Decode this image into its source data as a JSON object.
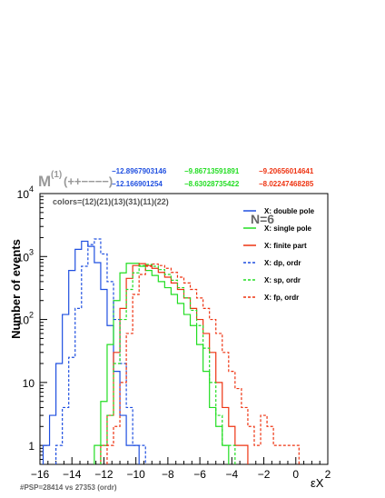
{
  "chart_data": {
    "type": "histogram",
    "title": "",
    "xlabel": "εX",
    "ylabel": "Number of events",
    "y_scale": "log",
    "xlim": [
      -16,
      2
    ],
    "ylim": [
      0.5,
      10000
    ],
    "grid": false,
    "legend_placement": "top-right",
    "x_ticks": [
      "−16",
      "−14",
      "−12",
      "−10",
      "−8",
      "−6",
      "−4",
      "−2",
      "0",
      "2"
    ],
    "y_ticks": [
      {
        "value": 1,
        "base": "1",
        "exp": ""
      },
      {
        "value": 10,
        "base": "10",
        "exp": ""
      },
      {
        "value": 100,
        "base": "10",
        "exp": "2"
      },
      {
        "value": 1000,
        "base": "10",
        "exp": "3"
      },
      {
        "value": 10000,
        "base": "10",
        "exp": "4"
      }
    ],
    "series": [
      {
        "name": "X: double pole",
        "color": "#1f4fe0",
        "dash": false,
        "x": [
          -15.6,
          -15.2,
          -14.8,
          -14.4,
          -14.0,
          -13.6,
          -13.2,
          -12.8,
          -12.4,
          -12.0,
          -11.6,
          -11.2,
          -10.8,
          -10.4,
          -10.0
        ],
        "y": [
          1,
          3,
          20,
          120,
          600,
          1300,
          1750,
          1450,
          800,
          300,
          80,
          15,
          3,
          1,
          1
        ]
      },
      {
        "name": "X: single pole",
        "color": "#22dd22",
        "dash": false,
        "x": [
          -12.4,
          -12.0,
          -11.6,
          -11.2,
          -10.8,
          -10.4,
          -10.0,
          -9.6,
          -9.2,
          -8.8,
          -8.4,
          -8.0,
          -7.6,
          -7.2,
          -6.8,
          -6.4,
          -6.0,
          -5.6,
          -5.2,
          -4.8,
          -4.4
        ],
        "y": [
          1,
          5,
          40,
          200,
          550,
          780,
          780,
          700,
          600,
          500,
          400,
          320,
          250,
          180,
          120,
          80,
          40,
          15,
          4,
          2,
          1
        ]
      },
      {
        "name": "X: finite part",
        "color": "#ee3311",
        "dash": false,
        "x": [
          -12.0,
          -11.6,
          -11.2,
          -10.8,
          -10.4,
          -10.0,
          -9.6,
          -9.2,
          -8.8,
          -8.4,
          -8.0,
          -7.6,
          -7.2,
          -6.8,
          -6.4,
          -6.0,
          -5.6,
          -5.2,
          -4.8,
          -4.4,
          -4.0,
          -3.6,
          -3.2
        ],
        "y": [
          1,
          3,
          30,
          150,
          450,
          720,
          770,
          720,
          650,
          560,
          470,
          380,
          300,
          220,
          150,
          100,
          60,
          30,
          10,
          4,
          2,
          1,
          1
        ]
      },
      {
        "name": "X: dp, ordr",
        "color": "#1f4fe0",
        "dash": true,
        "x": [
          -14.8,
          -14.4,
          -14.0,
          -13.6,
          -13.2,
          -12.8,
          -12.4,
          -12.0,
          -11.6,
          -11.2,
          -10.8,
          -10.4,
          -10.0,
          -9.6
        ],
        "y": [
          1,
          4,
          25,
          150,
          700,
          1550,
          1900,
          1100,
          400,
          100,
          20,
          4,
          1,
          1
        ]
      },
      {
        "name": "X: sp, ordr",
        "color": "#22dd22",
        "dash": true,
        "x": [
          -12.0,
          -11.6,
          -11.2,
          -10.8,
          -10.4,
          -10.0,
          -9.6,
          -9.2,
          -8.8,
          -8.4,
          -8.0,
          -7.6,
          -7.2,
          -6.8,
          -6.4,
          -6.0,
          -5.6,
          -5.2,
          -4.8,
          -4.4,
          -4.0
        ],
        "y": [
          1,
          3,
          20,
          100,
          300,
          550,
          720,
          750,
          700,
          620,
          520,
          420,
          320,
          220,
          140,
          80,
          35,
          10,
          3,
          1,
          1
        ]
      },
      {
        "name": "X: fp, ordr",
        "color": "#ee3311",
        "dash": true,
        "x": [
          -11.6,
          -11.2,
          -10.8,
          -10.4,
          -10.0,
          -9.6,
          -9.2,
          -8.8,
          -8.4,
          -8.0,
          -7.6,
          -7.2,
          -6.8,
          -6.4,
          -6.0,
          -5.6,
          -5.2,
          -4.8,
          -4.4,
          -4.0,
          -3.6,
          -3.2,
          -2.8,
          -2.4,
          -2.0,
          -1.6,
          -1.2,
          -0.8,
          -0.4,
          0.0
        ],
        "y": [
          1,
          2,
          10,
          60,
          250,
          520,
          700,
          760,
          720,
          650,
          560,
          470,
          380,
          300,
          220,
          150,
          100,
          60,
          30,
          15,
          8,
          4,
          2,
          1,
          3,
          2,
          1,
          1,
          1,
          1
        ]
      }
    ],
    "annotations": {
      "header_label": "M",
      "header_sup": "(1)",
      "header_args": "(++−−−−)",
      "values_row1": [
        {
          "text": "−12.8967903146",
          "color": "#1f4fe0"
        },
        {
          "text": "−9.86713591891",
          "color": "#22dd22"
        },
        {
          "text": "−9.20656014641",
          "color": "#ee3311"
        }
      ],
      "values_row2": [
        {
          "text": "−12.166901254",
          "color": "#1f4fe0"
        },
        {
          "text": "−8.63028735422",
          "color": "#22dd22"
        },
        {
          "text": "−8.02247468285",
          "color": "#ee3311"
        }
      ],
      "colors_text": "colors=(12)(21)(13)(31)(11)(22)",
      "n_label": "N=6",
      "footer": "#PSP=28414 vs 27353 (ordr)"
    }
  }
}
